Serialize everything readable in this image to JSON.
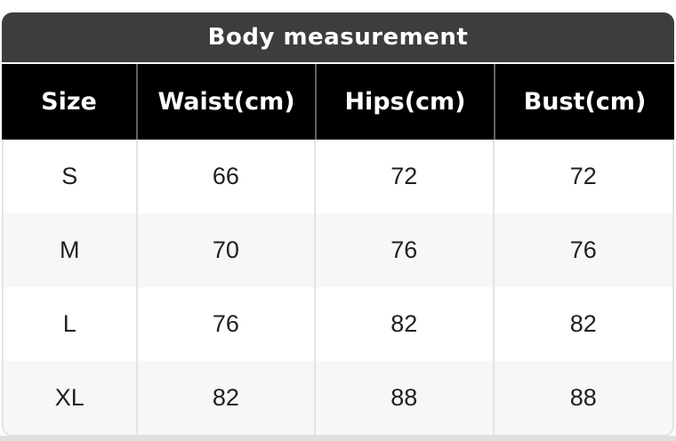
{
  "chart_data": {
    "type": "table",
    "title": "Body measurement",
    "columns": [
      "Size",
      "Waist(cm)",
      "Hips(cm)",
      "Bust(cm)"
    ],
    "rows": [
      [
        "S",
        "66",
        "72",
        "72"
      ],
      [
        "M",
        "70",
        "76",
        "76"
      ],
      [
        "L",
        "76",
        "82",
        "82"
      ],
      [
        "XL",
        "82",
        "88",
        "88"
      ]
    ]
  },
  "colors": {
    "title_bar_bg": "#3d3d3d",
    "header_bg": "#000000",
    "header_text": "#ffffff",
    "row_bg": "#ffffff",
    "row_alt_bg": "#f7f7f7",
    "body_text": "#212121",
    "divider_header": "#616161",
    "divider_body": "#e3e3e3",
    "bottom_strip": "#dfdfdf"
  }
}
